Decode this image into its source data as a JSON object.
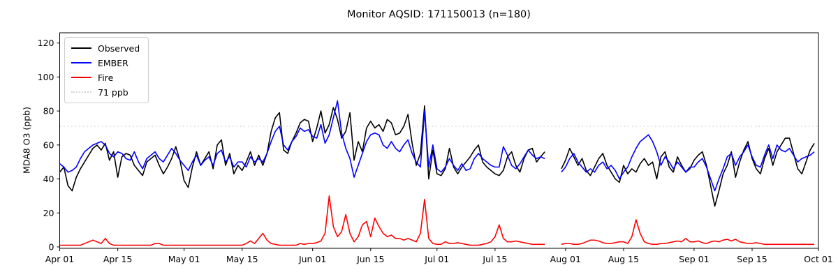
{
  "title": "Monitor AQSID: 171150013 (n=180)",
  "background_color": "#ffffff",
  "y_axis": {
    "label": "MDA8 O3 (ppb)",
    "ticks": [
      0,
      20,
      40,
      60,
      80,
      100,
      120
    ]
  },
  "x_axis": {
    "tick_labels": [
      "Apr 01",
      "Apr 15",
      "May 01",
      "May 15",
      "Jun 01",
      "Jun 15",
      "Jul 01",
      "Jul 15",
      "Aug 01",
      "Aug 15",
      "Sep 01",
      "Sep 15",
      "Oct 01"
    ],
    "tick_days": [
      0,
      14,
      30,
      44,
      61,
      75,
      91,
      105,
      122,
      136,
      153,
      167,
      183
    ]
  },
  "legend": {
    "items": [
      {
        "label": "Observed",
        "color": "#000000",
        "style": "solid"
      },
      {
        "label": "EMBER",
        "color": "#0000ff",
        "style": "solid"
      },
      {
        "label": "Fire",
        "color": "#ff0000",
        "style": "solid"
      },
      {
        "label": "71 ppb",
        "color": "#d3d3d3",
        "style": "dotted"
      }
    ]
  },
  "chart_data": {
    "type": "line",
    "title": "Monitor AQSID: 171150013 (n=180)",
    "xlabel": "",
    "ylabel": "MDA8 O3 (ppb)",
    "ylim": [
      -2,
      126
    ],
    "x_range_days": 183,
    "x_tick_labels": [
      "Apr 01",
      "Apr 15",
      "May 01",
      "May 15",
      "Jun 01",
      "Jun 15",
      "Jul 01",
      "Jul 15",
      "Aug 01",
      "Aug 15",
      "Sep 01",
      "Sep 15",
      "Oct 01"
    ],
    "x_tick_days": [
      0,
      14,
      30,
      44,
      61,
      75,
      91,
      105,
      122,
      136,
      153,
      167,
      183
    ],
    "n_points": 180,
    "grid": false,
    "legend_position": "upper left",
    "threshold": {
      "label": "71 ppb",
      "value": 71,
      "color": "#d3d3d3",
      "style": "dotted"
    },
    "missing_data": "values are daily from Apr 01; null entries (Jul 28-30) are the 3 missing days (n=180 of 183)",
    "series": [
      {
        "name": "Observed",
        "color": "#000000",
        "values": [
          44,
          47,
          36,
          33,
          41,
          46,
          50,
          54,
          58,
          60,
          57,
          61,
          51,
          56,
          41,
          53,
          55,
          54,
          48,
          45,
          42,
          50,
          52,
          54,
          48,
          43,
          47,
          52,
          59,
          51,
          39,
          35,
          47,
          56,
          48,
          52,
          56,
          46,
          60,
          63,
          48,
          55,
          43,
          48,
          45,
          50,
          56,
          48,
          54,
          48,
          55,
          68,
          76,
          79,
          57,
          55,
          62,
          67,
          73,
          75,
          74,
          62,
          70,
          80,
          67,
          72,
          82,
          75,
          64,
          68,
          79,
          51,
          62,
          56,
          70,
          74,
          70,
          72,
          68,
          75,
          73,
          66,
          67,
          71,
          78,
          61,
          48,
          55,
          83,
          40,
          57,
          43,
          42,
          46,
          58,
          47,
          43,
          47,
          50,
          53,
          57,
          60,
          50,
          47,
          45,
          43,
          42,
          45,
          53,
          56,
          48,
          44,
          52,
          57,
          58,
          50,
          53,
          56,
          null,
          null,
          null,
          46,
          51,
          58,
          53,
          48,
          52,
          45,
          42,
          47,
          52,
          55,
          48,
          44,
          40,
          38,
          48,
          43,
          46,
          44,
          49,
          52,
          48,
          50,
          40,
          53,
          56,
          47,
          44,
          53,
          48,
          44,
          46,
          51,
          54,
          56,
          48,
          36,
          24,
          33,
          43,
          48,
          56,
          41,
          50,
          57,
          62,
          52,
          46,
          43,
          52,
          58,
          48,
          56,
          60,
          64,
          64,
          55,
          46,
          43,
          50,
          57,
          61
        ]
      },
      {
        "name": "EMBER",
        "color": "#0000ff",
        "values": [
          49,
          47,
          44,
          45,
          47,
          52,
          56,
          58,
          60,
          61,
          62,
          60,
          55,
          53,
          56,
          55,
          52,
          51,
          56,
          50,
          46,
          52,
          54,
          56,
          52,
          50,
          54,
          58,
          55,
          51,
          48,
          45,
          50,
          54,
          48,
          51,
          53,
          48,
          55,
          57,
          50,
          53,
          47,
          50,
          50,
          47,
          53,
          50,
          52,
          50,
          55,
          62,
          68,
          71,
          60,
          57,
          62,
          65,
          70,
          68,
          69,
          65,
          64,
          72,
          61,
          66,
          76,
          86,
          67,
          58,
          52,
          41,
          48,
          55,
          62,
          66,
          67,
          66,
          60,
          58,
          62,
          58,
          56,
          60,
          63,
          55,
          50,
          47,
          80,
          47,
          60,
          46,
          44,
          47,
          52,
          48,
          45,
          49,
          45,
          46,
          52,
          55,
          52,
          50,
          48,
          47,
          47,
          59,
          54,
          48,
          46,
          49,
          53,
          57,
          54,
          52,
          53,
          52,
          null,
          null,
          null,
          44,
          47,
          52,
          55,
          50,
          47,
          44,
          46,
          44,
          48,
          50,
          46,
          48,
          45,
          40,
          44,
          47,
          53,
          58,
          62,
          64,
          66,
          62,
          56,
          48,
          53,
          50,
          46,
          50,
          47,
          44,
          47,
          47,
          50,
          52,
          47,
          40,
          33,
          40,
          46,
          53,
          55,
          48,
          53,
          56,
          60,
          53,
          48,
          47,
          54,
          60,
          52,
          60,
          57,
          56,
          58,
          54,
          50,
          52,
          53,
          54,
          56
        ]
      },
      {
        "name": "Fire",
        "color": "#ff0000",
        "values": [
          1,
          1,
          1,
          1,
          1,
          1,
          2,
          3,
          4,
          3,
          2,
          5,
          2,
          1,
          1,
          1,
          1,
          1,
          1,
          1,
          1,
          1,
          1,
          2,
          2,
          1,
          1,
          1,
          1,
          1,
          1,
          1,
          1,
          1,
          1,
          1,
          1,
          1,
          1,
          1,
          1,
          1,
          1,
          1,
          1,
          2,
          3.5,
          2,
          5,
          8,
          4,
          2,
          1.5,
          1,
          1,
          1,
          1,
          1,
          2,
          1.5,
          2,
          2,
          2.5,
          3.5,
          8,
          30,
          12,
          6,
          9,
          19,
          8,
          3,
          6,
          13,
          15,
          6,
          17,
          12,
          8,
          6,
          7,
          5,
          5,
          4,
          5,
          4,
          3,
          8,
          28,
          5,
          2,
          1.5,
          1.5,
          3,
          2,
          2,
          2.5,
          2,
          1.5,
          1,
          1,
          1,
          1.5,
          2,
          3,
          6,
          13,
          5,
          3,
          3,
          3.5,
          3,
          2.5,
          2,
          1.5,
          1.5,
          1.5,
          1.5,
          null,
          null,
          null,
          1.5,
          2,
          2,
          1.5,
          1.5,
          2,
          3,
          4,
          4,
          3.5,
          2.5,
          2,
          2,
          2.5,
          3,
          3,
          2,
          6,
          16,
          8,
          3,
          2,
          1.5,
          1.5,
          2,
          2,
          2.5,
          3,
          3.5,
          3,
          5,
          3,
          3,
          3.5,
          2.5,
          2,
          3,
          3.5,
          3,
          4,
          4.5,
          3.5,
          4.5,
          3,
          2.5,
          2,
          2,
          2.5,
          2,
          1.5,
          1.5,
          1.5,
          1.5,
          1.5,
          1.5,
          1.5,
          1.5,
          1.5,
          1.5,
          1.5,
          1.5,
          1.5
        ]
      }
    ]
  }
}
